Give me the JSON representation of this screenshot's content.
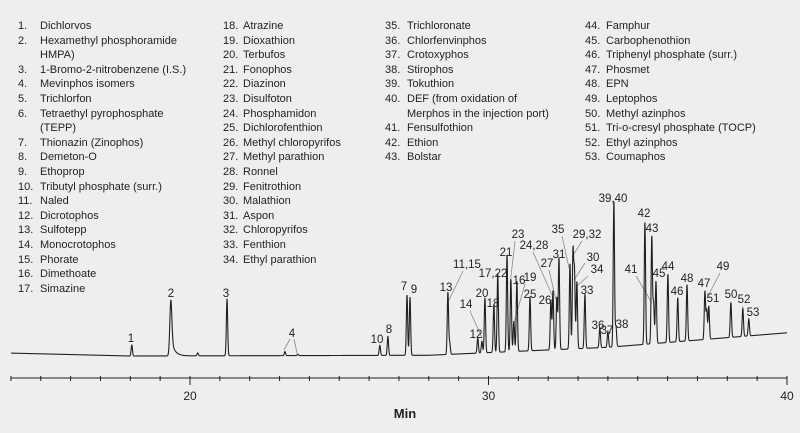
{
  "chart_data": {
    "type": "line",
    "title": "",
    "xlabel": "Min",
    "ylabel": "",
    "xlim": [
      14,
      40
    ],
    "x_major_ticks": [
      20,
      30,
      40
    ],
    "x_minor_tick_interval": 1,
    "grid": false,
    "y_axis_shown": false,
    "trace_color": "#231f20",
    "baseline": [
      [
        14,
        2
      ],
      [
        18,
        0
      ],
      [
        28,
        0.5
      ],
      [
        34,
        6
      ],
      [
        40,
        16
      ]
    ],
    "peaks": [
      {
        "label": "1",
        "time": 18.05,
        "height": 7.6
      },
      {
        "label": "2",
        "time": 19.36,
        "height": 38.6
      },
      {
        "label": "",
        "time": 20.26,
        "height": 2
      },
      {
        "label": "3",
        "time": 21.24,
        "height": 39.3
      },
      {
        "label": "4",
        "time": 23.18,
        "height": 2.8
      },
      {
        "label": "",
        "time": 23.61,
        "height": 1
      },
      {
        "label": "10",
        "time": 26.36,
        "height": 6.9
      },
      {
        "label": "8",
        "time": 26.63,
        "height": 13.1
      },
      {
        "label": "7",
        "time": 27.27,
        "height": 41.4
      },
      {
        "label": "9",
        "time": 27.37,
        "height": 40
      },
      {
        "label": "13",
        "time": 28.64,
        "height": 42.8
      },
      {
        "label": "11,15",
        "time": 28.7,
        "height": 8
      },
      {
        "label": "12",
        "time": 29.64,
        "height": 10.3
      },
      {
        "label": "14",
        "time": 29.78,
        "height": 8
      },
      {
        "label": "20",
        "time": 29.88,
        "height": 37.9
      },
      {
        "label": "18",
        "time": 30.18,
        "height": 33.1
      },
      {
        "label": "17,22",
        "time": 30.31,
        "height": 53.8
      },
      {
        "label": "21",
        "time": 30.62,
        "height": 66.9
      },
      {
        "label": "23",
        "time": 30.75,
        "height": 49.7
      },
      {
        "label": "19",
        "time": 30.85,
        "height": 20.7
      },
      {
        "label": "16",
        "time": 30.95,
        "height": 48.3
      },
      {
        "label": "25",
        "time": 31.39,
        "height": 37.2
      },
      {
        "label": "26",
        "time": 32.09,
        "height": 33.8
      },
      {
        "label": "24,28",
        "time": 32.16,
        "height": 40.7
      },
      {
        "label": "27",
        "time": 32.29,
        "height": 35.9
      },
      {
        "label": "31",
        "time": 32.36,
        "height": 63.4
      },
      {
        "label": "35",
        "time": 32.73,
        "height": 58.6
      },
      {
        "label": "29,32",
        "time": 32.83,
        "height": 66.2
      },
      {
        "label": "30",
        "time": 32.88,
        "height": 51.7
      },
      {
        "label": "34",
        "time": 32.96,
        "height": 46.2
      },
      {
        "label": "33",
        "time": 33.23,
        "height": 37.2
      },
      {
        "label": "36",
        "time": 33.73,
        "height": 13.8
      },
      {
        "label": "37",
        "time": 34.0,
        "height": 11
      },
      {
        "label": "39,40",
        "time": 34.2,
        "height": 100
      },
      {
        "label": "38",
        "time": 34.27,
        "height": 13.8
      },
      {
        "label": "42",
        "time": 35.24,
        "height": 84.1
      },
      {
        "label": "43",
        "time": 35.47,
        "height": 73.8
      },
      {
        "label": "41",
        "time": 35.53,
        "height": 27.6
      },
      {
        "label": "45",
        "time": 35.61,
        "height": 42.8
      },
      {
        "label": "44",
        "time": 36.01,
        "height": 46.9
      },
      {
        "label": "46",
        "time": 36.34,
        "height": 30.3
      },
      {
        "label": "48",
        "time": 36.65,
        "height": 38.6
      },
      {
        "label": "47",
        "time": 37.25,
        "height": 33.1
      },
      {
        "label": "49",
        "time": 37.31,
        "height": 20
      },
      {
        "label": "51",
        "time": 37.38,
        "height": 22.8
      },
      {
        "label": "50",
        "time": 38.12,
        "height": 24.1
      },
      {
        "label": "52",
        "time": 38.52,
        "height": 19.3
      },
      {
        "label": "53",
        "time": 38.72,
        "height": 11.7
      }
    ]
  },
  "legend": {
    "columns": [
      [
        {
          "num": "1.",
          "name": "Dichlorvos"
        },
        {
          "num": "2.",
          "name": "Hexamethyl phosphoramide\nHMPA)"
        },
        {
          "num": "3.",
          "name": "1-Bromo-2-nitrobenzene (I.S.)"
        },
        {
          "num": "4.",
          "name": "Mevinphos isomers"
        },
        {
          "num": "5.",
          "name": "Trichlorfon"
        },
        {
          "num": "6.",
          "name": "Tetraethyl pyrophosphate\n(TEPP)"
        },
        {
          "num": "7.",
          "name": "Thionazin (Zinophos)"
        },
        {
          "num": "8.",
          "name": "Demeton-O"
        },
        {
          "num": "9.",
          "name": "Ethoprop"
        },
        {
          "num": "10.",
          "name": "Tributyl phosphate (surr.)"
        },
        {
          "num": "11.",
          "name": "Naled"
        },
        {
          "num": "12.",
          "name": "Dicrotophos"
        },
        {
          "num": "13.",
          "name": "Sulfotepp"
        },
        {
          "num": "14.",
          "name": "Monocrotophos"
        },
        {
          "num": "15.",
          "name": "Phorate"
        },
        {
          "num": "16.",
          "name": "Dimethoate"
        },
        {
          "num": "17.",
          "name": "Simazine"
        }
      ],
      [
        {
          "num": "18.",
          "name": "Atrazine"
        },
        {
          "num": "19.",
          "name": "Dioxathion"
        },
        {
          "num": "20.",
          "name": "Terbufos"
        },
        {
          "num": "21.",
          "name": "Fonophos"
        },
        {
          "num": "22.",
          "name": "Diazinon"
        },
        {
          "num": "23.",
          "name": "Disulfoton"
        },
        {
          "num": "24.",
          "name": "Phosphamidon"
        },
        {
          "num": "25.",
          "name": "Dichlorofenthion"
        },
        {
          "num": "26.",
          "name": "Methyl chloropyrifos"
        },
        {
          "num": "27.",
          "name": "Methyl parathion"
        },
        {
          "num": "28.",
          "name": "Ronnel"
        },
        {
          "num": "29.",
          "name": "Fenitrothion"
        },
        {
          "num": "30.",
          "name": "Malathion"
        },
        {
          "num": "31.",
          "name": "Aspon"
        },
        {
          "num": "32.",
          "name": "Chloropyrifos"
        },
        {
          "num": "33.",
          "name": "Fenthion"
        },
        {
          "num": "34.",
          "name": "Ethyl parathion"
        }
      ],
      [
        {
          "num": "35.",
          "name": "Trichloronate"
        },
        {
          "num": "36.",
          "name": "Chlorfenvinphos"
        },
        {
          "num": "37.",
          "name": "Crotoxyphos"
        },
        {
          "num": "38.",
          "name": "Stirophos"
        },
        {
          "num": "39.",
          "name": "Tokuthion"
        },
        {
          "num": "40.",
          "name": "DEF (from oxidation of\nMerphos in the injection port)"
        },
        {
          "num": "41.",
          "name": "Fensulfothion"
        },
        {
          "num": "42.",
          "name": "Ethion"
        },
        {
          "num": "43.",
          "name": "Bolstar"
        }
      ],
      [
        {
          "num": "44.",
          "name": "Famphur"
        },
        {
          "num": "45.",
          "name": "Carbophenothion"
        },
        {
          "num": "46.",
          "name": "Triphenyl phosphate (surr.)"
        },
        {
          "num": "47.",
          "name": "Phosmet"
        },
        {
          "num": "48.",
          "name": "EPN"
        },
        {
          "num": "49.",
          "name": "Leptophos"
        },
        {
          "num": "50.",
          "name": "Methyl azinphos"
        },
        {
          "num": "51.",
          "name": "Tri-o-cresyl phosphate (TOCP)"
        },
        {
          "num": "52.",
          "name": "Ethyl azinphos"
        },
        {
          "num": "53.",
          "name": "Coumaphos"
        }
      ]
    ]
  }
}
